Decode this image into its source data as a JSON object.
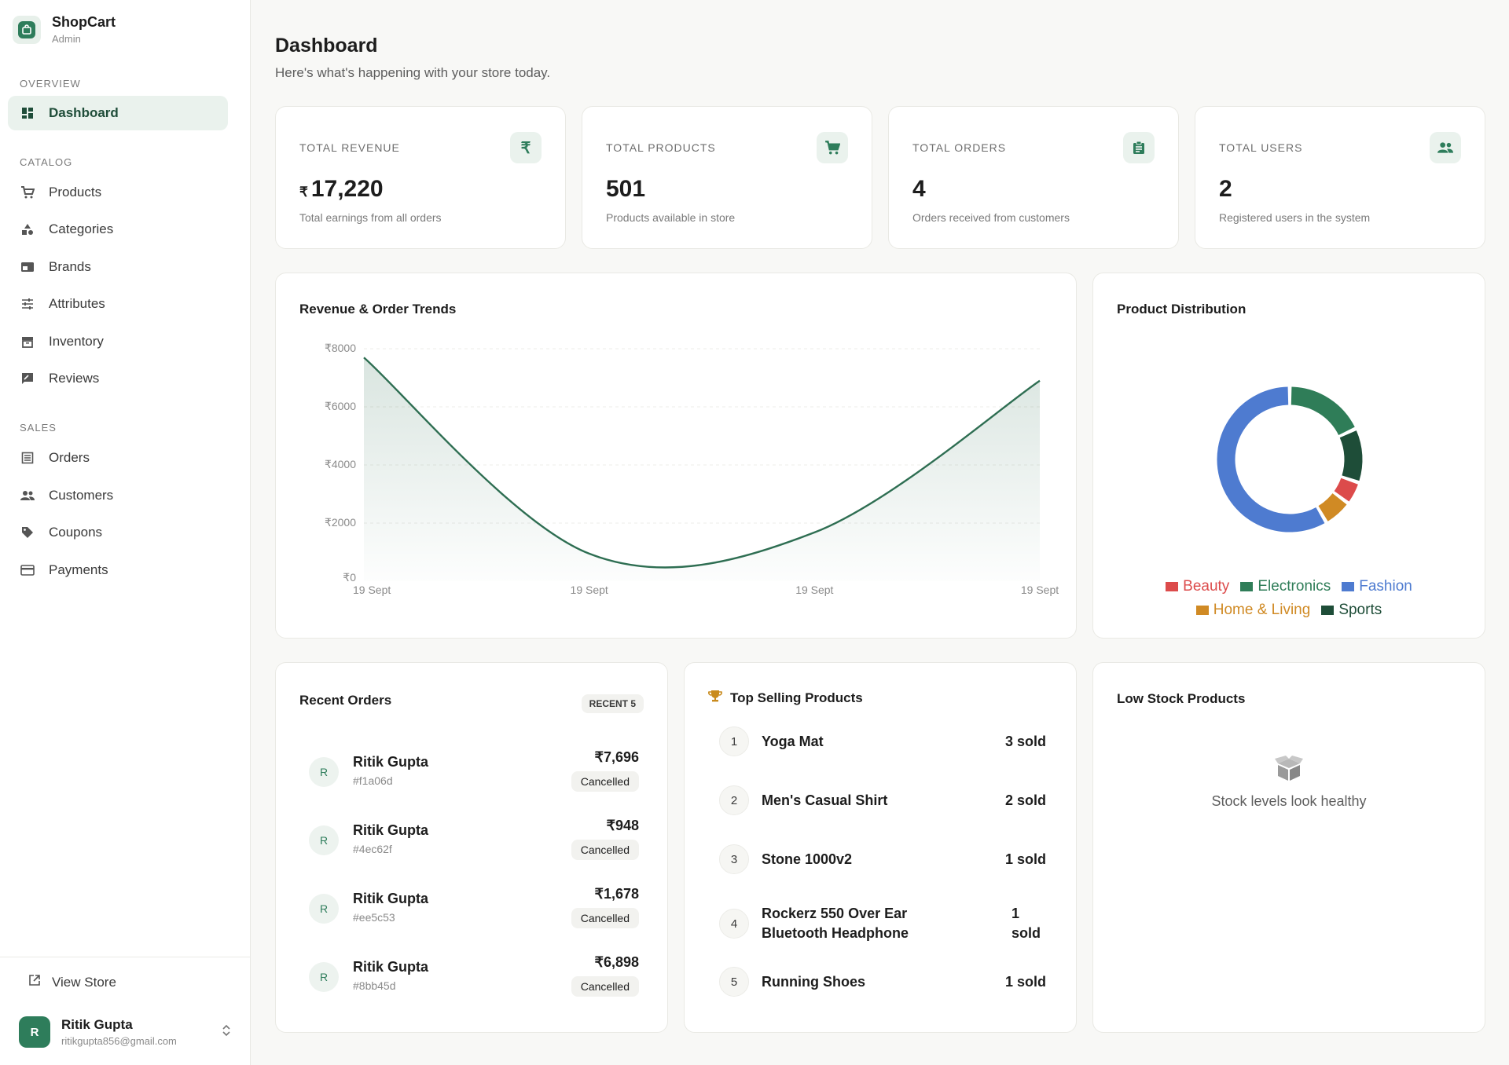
{
  "brand": {
    "name": "ShopCart",
    "sub": "Admin"
  },
  "nav": {
    "overview_label": "OVERVIEW",
    "catalog_label": "CATALOG",
    "sales_label": "SALES",
    "dashboard": "Dashboard",
    "products": "Products",
    "categories": "Categories",
    "brands": "Brands",
    "attributes": "Attributes",
    "inventory": "Inventory",
    "reviews": "Reviews",
    "orders": "Orders",
    "customers": "Customers",
    "coupons": "Coupons",
    "payments": "Payments"
  },
  "footer": {
    "view_store": "View Store",
    "user_initial": "R",
    "user_name": "Ritik Gupta",
    "user_email": "ritikgupta856@gmail.com"
  },
  "header": {
    "title": "Dashboard",
    "subtitle": "Here's what's happening with your store today."
  },
  "stats": {
    "revenue": {
      "label": "TOTAL REVENUE",
      "currency": "₹",
      "value": "17,220",
      "desc": "Total earnings from all orders",
      "icon": "rupee-icon"
    },
    "products": {
      "label": "TOTAL PRODUCTS",
      "value": "501",
      "desc": "Products available in store",
      "icon": "cart-icon"
    },
    "orders": {
      "label": "TOTAL ORDERS",
      "value": "4",
      "desc": "Orders received from customers",
      "icon": "clipboard-icon"
    },
    "users": {
      "label": "TOTAL USERS",
      "value": "2",
      "desc": "Registered users in the system",
      "icon": "users-icon"
    }
  },
  "trend_card": {
    "title": "Revenue & Order Trends"
  },
  "distribution_card": {
    "title": "Product Distribution"
  },
  "chart_data": [
    {
      "type": "area",
      "title": "Revenue & Order Trends",
      "x": [
        "19 Sept",
        "19 Sept",
        "19 Sept",
        "19 Sept"
      ],
      "series": [
        {
          "values": [
            7696,
            948,
            1678,
            6898
          ]
        }
      ],
      "ytick_labels": [
        "₹0",
        "₹2000",
        "₹4000",
        "₹6000",
        "₹8000"
      ],
      "ylim": [
        0,
        8000
      ],
      "grid": true,
      "color": "#2e6e52"
    },
    {
      "type": "pie",
      "title": "Product Distribution",
      "donut": true,
      "categories": [
        "Beauty",
        "Electronics",
        "Fashion",
        "Home & Living",
        "Sports"
      ],
      "values": [
        24,
        85,
        275,
        30,
        57
      ],
      "colors": [
        "#dc4b4b",
        "#2f7d58",
        "#4e7bd0",
        "#d08a24",
        "#1e4d38"
      ],
      "legend": "bottom"
    }
  ],
  "recent_orders": {
    "title": "Recent Orders",
    "badge": "RECENT 5",
    "rows": [
      {
        "initial": "R",
        "name": "Ritik Gupta",
        "id": "#f1a06d",
        "amount": "₹7,696",
        "status": "Cancelled"
      },
      {
        "initial": "R",
        "name": "Ritik Gupta",
        "id": "#4ec62f",
        "amount": "₹948",
        "status": "Cancelled"
      },
      {
        "initial": "R",
        "name": "Ritik Gupta",
        "id": "#ee5c53",
        "amount": "₹1,678",
        "status": "Cancelled"
      },
      {
        "initial": "R",
        "name": "Ritik Gupta",
        "id": "#8bb45d",
        "amount": "₹6,898",
        "status": "Cancelled"
      }
    ]
  },
  "top_selling": {
    "title": "Top Selling Products",
    "rows": [
      {
        "rank": "1",
        "name": "Yoga Mat",
        "sold": "3 sold"
      },
      {
        "rank": "2",
        "name": "Men's Casual Shirt",
        "sold": "2 sold"
      },
      {
        "rank": "3",
        "name": "Stone 1000v2",
        "sold": "1 sold"
      },
      {
        "rank": "4",
        "name": "Rockerz 550 Over Ear Bluetooth Headphone",
        "sold": "1 sold"
      },
      {
        "rank": "5",
        "name": "Running Shoes",
        "sold": "1 sold"
      }
    ]
  },
  "low_stock": {
    "title": "Low Stock Products",
    "empty_text": "Stock levels look healthy"
  },
  "colors": {
    "accent": "#2e7d5b",
    "accent_light": "#eaf2ed",
    "background": "#f8f8f6"
  }
}
